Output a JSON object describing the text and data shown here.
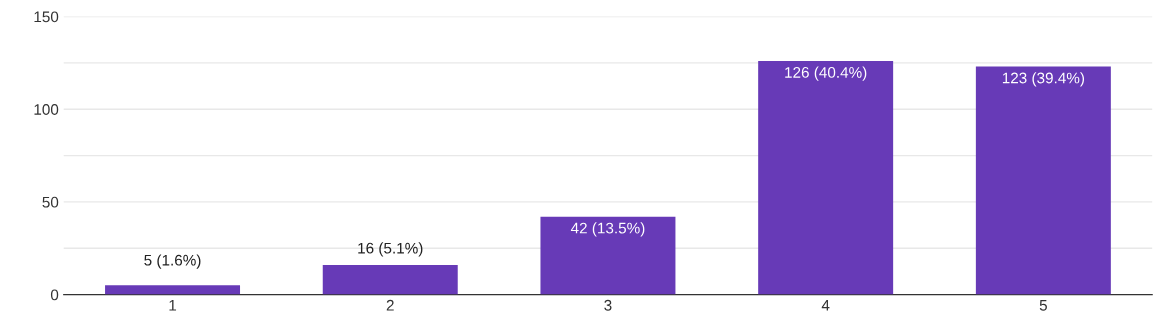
{
  "chart_data": {
    "type": "bar",
    "categories": [
      "1",
      "2",
      "3",
      "4",
      "5"
    ],
    "values": [
      5,
      16,
      42,
      126,
      123
    ],
    "value_labels": [
      "5 (1.6%)",
      "16 (5.1%)",
      "42 (13.5%)",
      "126 (40.4%)",
      "123 (39.4%)"
    ],
    "color": "#673ab7",
    "ylim": [
      0,
      150
    ],
    "yticks": [
      0,
      {
        "value": 25,
        "label": null
      },
      50,
      {
        "value": 75,
        "label": null
      },
      100,
      {
        "value": 125,
        "label": null
      },
      150
    ],
    "grid": "y"
  }
}
